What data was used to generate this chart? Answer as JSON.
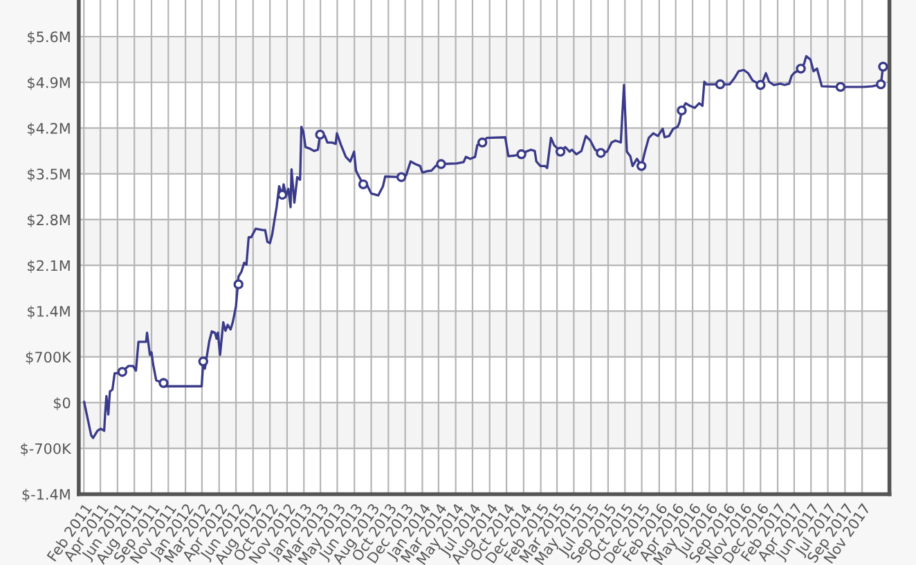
{
  "chart_data": {
    "type": "line",
    "xlim": [
      "2011-02-11",
      "2018-02-07"
    ],
    "xticks": [
      {
        "value": "2011-02-27",
        "label": "Feb 2011"
      },
      {
        "value": "2011-04-20",
        "label": "Apr 2011"
      },
      {
        "value": "2011-06-13",
        "label": "Jun 2011"
      },
      {
        "value": "2011-08-05",
        "label": "Aug 2011"
      },
      {
        "value": "2011-09-28",
        "label": "Sep 2011"
      },
      {
        "value": "2011-11-20",
        "label": "Nov 2011"
      },
      {
        "value": "2012-01-13",
        "label": "Jan 2012"
      },
      {
        "value": "2012-03-05",
        "label": "Mar 2012"
      },
      {
        "value": "2012-04-28",
        "label": "Apr 2012"
      },
      {
        "value": "2012-06-20",
        "label": "Jun 2012"
      },
      {
        "value": "2012-08-13",
        "label": "Aug 2012"
      },
      {
        "value": "2012-10-05",
        "label": "Oct 2012"
      },
      {
        "value": "2012-11-28",
        "label": "Nov 2012"
      },
      {
        "value": "2013-01-20",
        "label": "Jan 2013"
      },
      {
        "value": "2013-03-13",
        "label": "Mar 2013"
      },
      {
        "value": "2013-05-05",
        "label": "May 2013"
      },
      {
        "value": "2013-06-28",
        "label": "Jun 2013"
      },
      {
        "value": "2013-08-20",
        "label": "Aug 2013"
      },
      {
        "value": "2013-10-13",
        "label": "Oct 2013"
      },
      {
        "value": "2013-12-05",
        "label": "Dec 2013"
      },
      {
        "value": "2014-01-28",
        "label": "Jan 2014"
      },
      {
        "value": "2014-03-20",
        "label": "Mar 2014"
      },
      {
        "value": "2014-05-13",
        "label": "May 2014"
      },
      {
        "value": "2014-07-05",
        "label": "Jul 2014"
      },
      {
        "value": "2014-08-28",
        "label": "Aug 2014"
      },
      {
        "value": "2014-10-20",
        "label": "Oct 2014"
      },
      {
        "value": "2014-12-13",
        "label": "Dec 2014"
      },
      {
        "value": "2015-02-05",
        "label": "Feb 2015"
      },
      {
        "value": "2015-03-28",
        "label": "Mar 2015"
      },
      {
        "value": "2015-05-20",
        "label": "May 2015"
      },
      {
        "value": "2015-07-13",
        "label": "Jul 2015"
      },
      {
        "value": "2015-09-05",
        "label": "Sep 2015"
      },
      {
        "value": "2015-10-28",
        "label": "Oct 2015"
      },
      {
        "value": "2015-12-20",
        "label": "Dec 2015"
      },
      {
        "value": "2016-02-13",
        "label": "Feb 2016"
      },
      {
        "value": "2016-04-05",
        "label": "Apr 2016"
      },
      {
        "value": "2016-05-28",
        "label": "May 2016"
      },
      {
        "value": "2016-07-20",
        "label": "Jul 2016"
      },
      {
        "value": "2016-09-13",
        "label": "Sep 2016"
      },
      {
        "value": "2016-11-05",
        "label": "Nov 2016"
      },
      {
        "value": "2016-12-28",
        "label": "Dec 2016"
      },
      {
        "value": "2017-02-20",
        "label": "Feb 2017"
      },
      {
        "value": "2017-04-13",
        "label": "Apr 2017"
      },
      {
        "value": "2017-06-05",
        "label": "Jun 2017"
      },
      {
        "value": "2017-07-28",
        "label": "Jul 2017"
      },
      {
        "value": "2017-09-20",
        "label": "Sep 2017"
      },
      {
        "value": "2017-11-13",
        "label": "Nov 2017"
      }
    ],
    "ylim": [
      -1400000,
      6160000
    ],
    "yticks": [
      {
        "value": -1400000,
        "label": "$-1.4M"
      },
      {
        "value": -700000,
        "label": "$-700K"
      },
      {
        "value": 0,
        "label": "$0"
      },
      {
        "value": 700000,
        "label": "$700K"
      },
      {
        "value": 1400000,
        "label": "$1.4M"
      },
      {
        "value": 2100000,
        "label": "$2.1M"
      },
      {
        "value": 2800000,
        "label": "$2.8M"
      },
      {
        "value": 3500000,
        "label": "$3.5M"
      },
      {
        "value": 4200000,
        "label": "$4.2M"
      },
      {
        "value": 4900000,
        "label": "$4.9M"
      },
      {
        "value": 5600000,
        "label": "$5.6M"
      }
    ],
    "grid": true,
    "bands": [
      {
        "axis": "y",
        "from": -700000,
        "to": 0,
        "color": "#f4f4f4"
      },
      {
        "axis": "y",
        "from": 700000,
        "to": 1400000,
        "color": "#f4f4f4"
      },
      {
        "axis": "y",
        "from": 2100000,
        "to": 2800000,
        "color": "#f4f4f4"
      },
      {
        "axis": "y",
        "from": 3500000,
        "to": 4200000,
        "color": "#f4f4f4"
      },
      {
        "axis": "y",
        "from": 4900000,
        "to": 5600000,
        "color": "#f4f4f4"
      }
    ],
    "series": [
      {
        "color": "#3a3a8a",
        "marker": "none",
        "line_style": "solid",
        "x": [
          "2011-02-28",
          "2011-03-22",
          "2011-03-28",
          "2011-04-11",
          "2011-04-21",
          "2011-05-02",
          "2011-05-05",
          "2011-05-09",
          "2011-05-15",
          "2011-05-20",
          "2011-05-28",
          "2011-06-04",
          "2011-06-18",
          "2011-06-28",
          "2011-07-17",
          "2011-08-01",
          "2011-08-10",
          "2011-08-18",
          "2011-09-11",
          "2011-09-14",
          "2011-09-23",
          "2011-09-28",
          "2011-10-03",
          "2011-10-13",
          "2011-11-05",
          "2011-11-12",
          "2012-02-08",
          "2012-03-04",
          "2012-03-09",
          "2012-03-14",
          "2012-03-28",
          "2012-04-05",
          "2012-04-15",
          "2012-04-20",
          "2012-04-24",
          "2012-05-01",
          "2012-05-11",
          "2012-05-18",
          "2012-05-25",
          "2012-06-03",
          "2012-06-10",
          "2012-06-20",
          "2012-06-28",
          "2012-07-07",
          "2012-07-16",
          "2012-07-23",
          "2012-07-30",
          "2012-08-07",
          "2012-08-21",
          "2012-09-13",
          "2012-09-20",
          "2012-09-27",
          "2012-10-05",
          "2012-10-12",
          "2012-10-19",
          "2012-10-26",
          "2012-11-03",
          "2012-11-13",
          "2012-11-17",
          "2012-11-25",
          "2012-12-02",
          "2012-12-09",
          "2012-12-12",
          "2012-12-21",
          "2012-12-30",
          "2013-01-08",
          "2013-01-12",
          "2013-01-18",
          "2013-01-25",
          "2013-02-06",
          "2013-02-21",
          "2013-03-05",
          "2013-03-12",
          "2013-03-27",
          "2013-04-04",
          "2013-04-18",
          "2013-04-30",
          "2013-05-04",
          "2013-05-17",
          "2013-06-01",
          "2013-06-15",
          "2013-06-27",
          "2013-07-03",
          "2013-07-10",
          "2013-07-26",
          "2013-08-06",
          "2013-08-20",
          "2013-09-11",
          "2013-09-26",
          "2013-10-03",
          "2013-11-23",
          "2013-12-08",
          "2013-12-22",
          "2014-01-06",
          "2014-01-21",
          "2014-01-28",
          "2014-02-12",
          "2014-02-26",
          "2014-03-11",
          "2014-03-28",
          "2014-05-16",
          "2014-06-07",
          "2014-06-14",
          "2014-06-28",
          "2014-07-13",
          "2014-07-20",
          "2014-08-05",
          "2014-08-19",
          "2014-10-16",
          "2014-10-26",
          "2014-11-15",
          "2014-12-06",
          "2014-12-21",
          "2015-01-05",
          "2015-01-17",
          "2015-01-22",
          "2015-02-04",
          "2015-02-18",
          "2015-02-25",
          "2015-03-09",
          "2015-03-19",
          "2015-04-08",
          "2015-04-23",
          "2015-05-07",
          "2015-05-14",
          "2015-05-28",
          "2015-06-13",
          "2015-06-27",
          "2015-07-11",
          "2015-07-26",
          "2015-08-13",
          "2015-09-02",
          "2015-09-16",
          "2015-09-28",
          "2015-10-15",
          "2015-10-25",
          "2015-11-03",
          "2015-11-14",
          "2015-11-21",
          "2015-12-05",
          "2015-12-19",
          "2015-12-30",
          "2016-01-11",
          "2016-01-25",
          "2016-02-09",
          "2016-02-24",
          "2016-03-01",
          "2016-03-15",
          "2016-03-28",
          "2016-04-11",
          "2016-04-17",
          "2016-04-24",
          "2016-05-06",
          "2016-05-20",
          "2016-06-04",
          "2016-06-18",
          "2016-06-28",
          "2016-07-04",
          "2016-07-10",
          "2016-08-23",
          "2016-09-22",
          "2016-10-06",
          "2016-10-20",
          "2016-11-05",
          "2016-11-19",
          "2016-12-03",
          "2016-12-28",
          "2017-01-02",
          "2017-01-14",
          "2017-01-24",
          "2017-02-08",
          "2017-02-28",
          "2017-03-14",
          "2017-03-28",
          "2017-04-05",
          "2017-04-12",
          "2017-05-04",
          "2017-05-14",
          "2017-05-21",
          "2017-06-03",
          "2017-06-13",
          "2017-06-24",
          "2017-07-09",
          "2017-09-06",
          "2017-11-17",
          "2017-12-16",
          "2018-01-11",
          "2018-01-18"
        ],
        "values": [
          10000,
          -500000,
          -540000,
          -430000,
          -400000,
          -430000,
          -180000,
          100000,
          -180000,
          170000,
          200000,
          450000,
          450000,
          470000,
          560000,
          560000,
          490000,
          930000,
          930000,
          1070000,
          730000,
          770000,
          590000,
          340000,
          300000,
          250000,
          250000,
          250000,
          630000,
          520000,
          940000,
          1090000,
          1070000,
          980000,
          1070000,
          730000,
          1230000,
          1100000,
          1190000,
          1120000,
          1230000,
          1470000,
          1930000,
          2000000,
          2140000,
          2110000,
          2530000,
          2530000,
          2660000,
          2640000,
          2640000,
          2460000,
          2440000,
          2570000,
          2780000,
          2990000,
          3310000,
          3180000,
          3340000,
          3170000,
          3270000,
          2990000,
          3570000,
          3060000,
          3450000,
          3410000,
          4220000,
          4150000,
          3910000,
          3890000,
          3850000,
          3870000,
          4100000,
          4080000,
          3980000,
          3980000,
          3960000,
          4120000,
          3940000,
          3760000,
          3690000,
          3840000,
          3550000,
          3480000,
          3340000,
          3340000,
          3200000,
          3170000,
          3310000,
          3460000,
          3450000,
          3480000,
          3690000,
          3650000,
          3620000,
          3520000,
          3540000,
          3550000,
          3620000,
          3650000,
          3660000,
          3680000,
          3760000,
          3730000,
          3760000,
          3940000,
          3980000,
          4050000,
          4060000,
          3770000,
          3780000,
          3800000,
          3840000,
          3870000,
          3850000,
          3690000,
          3620000,
          3620000,
          3590000,
          4050000,
          3940000,
          3840000,
          3910000,
          3840000,
          3870000,
          3800000,
          3850000,
          4080000,
          4010000,
          3870000,
          3820000,
          3840000,
          3980000,
          4010000,
          3980000,
          4860000,
          3840000,
          3770000,
          3620000,
          3730000,
          3620000,
          3840000,
          4050000,
          4120000,
          4080000,
          4190000,
          4060000,
          4080000,
          4190000,
          4220000,
          4290000,
          4470000,
          4580000,
          4540000,
          4510000,
          4580000,
          4540000,
          4910000,
          4870000,
          4870000,
          4870000,
          4960000,
          5070000,
          5090000,
          5040000,
          4930000,
          4860000,
          4890000,
          5040000,
          4910000,
          4860000,
          4880000,
          4860000,
          4880000,
          5000000,
          5040000,
          5110000,
          5180000,
          5300000,
          5250000,
          5070000,
          5110000,
          4840000,
          4830000,
          4830000,
          4840000,
          4870000,
          5140000
        ]
      },
      {
        "type": "scatter",
        "color": "#3a3a8a",
        "marker": "circle",
        "x": [
          "2011-06-28",
          "2011-11-05",
          "2012-03-09",
          "2012-06-28",
          "2012-11-13",
          "2013-03-12",
          "2013-07-26",
          "2013-11-23",
          "2014-03-28",
          "2014-08-05",
          "2014-12-06",
          "2015-04-08",
          "2015-08-13",
          "2015-12-19",
          "2016-04-24",
          "2016-08-23",
          "2016-12-28",
          "2017-05-04",
          "2017-09-06",
          "2018-01-11",
          "2018-01-18"
        ],
        "values": [
          470000,
          300000,
          630000,
          1810000,
          3180000,
          4100000,
          3340000,
          3450000,
          3650000,
          3980000,
          3800000,
          3840000,
          3820000,
          3620000,
          4470000,
          4870000,
          4860000,
          5110000,
          4830000,
          4870000,
          5140000
        ]
      }
    ]
  }
}
